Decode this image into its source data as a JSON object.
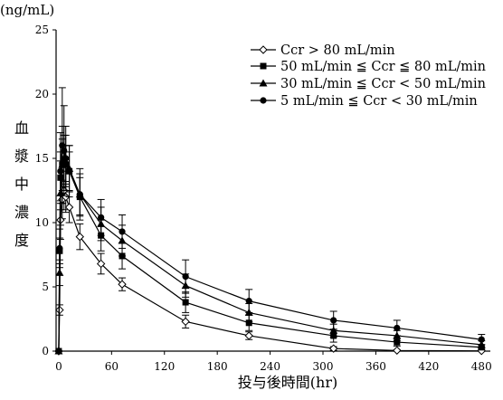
{
  "chart_data": {
    "type": "line",
    "title": "",
    "y_unit": "(ng/mL)",
    "ylabel": "血漿中濃度",
    "xlabel": "投与後時間(hr)",
    "xlim": [
      -3,
      490
    ],
    "ylim": [
      0,
      25
    ],
    "x_ticks": [
      0,
      60,
      120,
      180,
      240,
      300,
      360,
      420,
      480
    ],
    "y_ticks": [
      0,
      5,
      10,
      15,
      20,
      25
    ],
    "grid": false,
    "legend_position": "top-right",
    "series": [
      {
        "name": "Ccr > 80 mL/min",
        "marker": "open-diamond",
        "x": [
          0,
          1,
          2,
          4,
          6,
          8,
          12,
          24,
          48,
          72,
          144,
          216,
          312,
          384,
          480
        ],
        "y": [
          0,
          3.2,
          10.2,
          11.8,
          12.5,
          12.0,
          11.2,
          8.9,
          6.8,
          5.2,
          2.3,
          1.2,
          0.2,
          0.05,
          0.02
        ],
        "err": [
          0,
          0.4,
          1.5,
          1.5,
          1.5,
          1.2,
          1.2,
          1.0,
          0.8,
          0.5,
          0.5,
          0.3,
          0.15,
          0.05,
          0.02
        ]
      },
      {
        "name": "50 mL/min ≦ Ccr ≦ 80 mL/min",
        "marker": "filled-square",
        "x": [
          0,
          1,
          2,
          4,
          6,
          8,
          12,
          24,
          48,
          72,
          144,
          216,
          312,
          384,
          480
        ],
        "y": [
          0,
          7.8,
          13.5,
          14.5,
          14.8,
          14.5,
          14.0,
          12.0,
          9.0,
          7.4,
          3.8,
          2.2,
          1.2,
          0.7,
          0.3
        ],
        "err": [
          0,
          1.0,
          2.0,
          2.0,
          2.0,
          1.5,
          1.5,
          1.5,
          1.2,
          1.0,
          0.8,
          0.6,
          0.5,
          0.3,
          0.2
        ]
      },
      {
        "name": "30 mL/min ≦ Ccr < 50 mL/min",
        "marker": "filled-triangle",
        "x": [
          0,
          1,
          2,
          4,
          6,
          8,
          12,
          24,
          48,
          72,
          144,
          216,
          312,
          384,
          480
        ],
        "y": [
          0,
          6.1,
          12.3,
          14.5,
          15.0,
          14.8,
          14.2,
          12.2,
          9.9,
          8.6,
          5.1,
          3.0,
          1.6,
          1.2,
          0.5
        ],
        "err": [
          0,
          1.0,
          2.5,
          3.0,
          2.5,
          2.0,
          1.8,
          1.6,
          1.3,
          1.2,
          0.9,
          0.7,
          0.5,
          0.4,
          0.3
        ]
      },
      {
        "name": "5 mL/min ≦ Ccr < 30 mL/min",
        "marker": "filled-circle",
        "x": [
          0,
          1,
          2,
          4,
          6,
          8,
          12,
          24,
          48,
          72,
          144,
          216,
          312,
          384,
          480
        ],
        "y": [
          0,
          8.0,
          14.0,
          16.0,
          15.6,
          15.0,
          14.0,
          12.2,
          10.4,
          9.3,
          5.8,
          3.9,
          2.4,
          1.8,
          0.9
        ],
        "err": [
          0,
          1.5,
          3.0,
          4.5,
          3.5,
          2.5,
          2.0,
          2.0,
          1.4,
          1.3,
          1.3,
          0.9,
          0.7,
          0.6,
          0.4
        ]
      }
    ]
  }
}
